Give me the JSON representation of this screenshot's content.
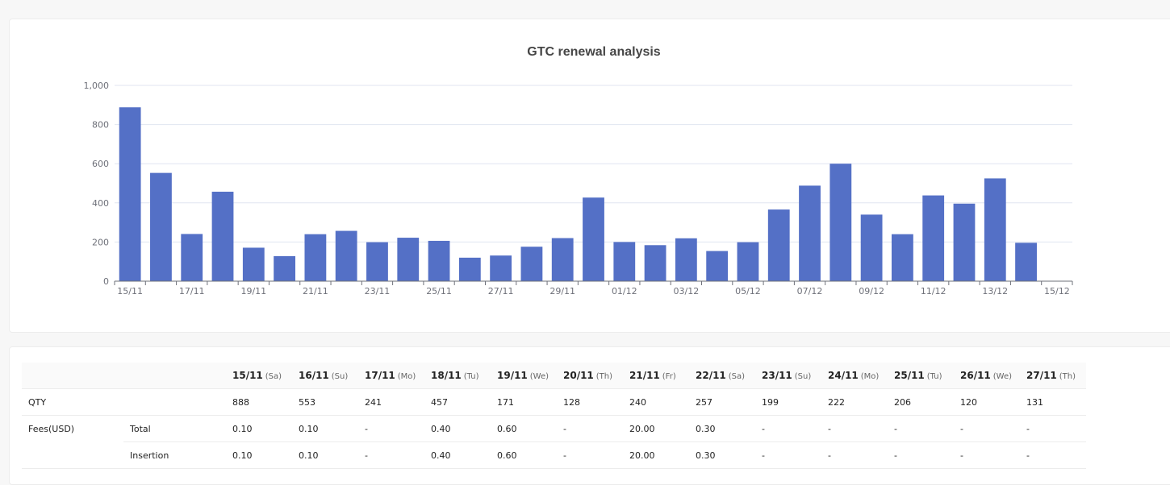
{
  "chart_data": {
    "type": "bar",
    "title": "GTC renewal analysis",
    "categories": [
      "15/11",
      "16/11",
      "17/11",
      "18/11",
      "19/11",
      "20/11",
      "21/11",
      "22/11",
      "23/11",
      "24/11",
      "25/11",
      "26/11",
      "27/11",
      "28/11",
      "29/11",
      "30/11",
      "01/12",
      "02/12",
      "03/12",
      "04/12",
      "05/12",
      "06/12",
      "07/12",
      "08/12",
      "09/12",
      "10/12",
      "11/12",
      "12/12",
      "13/12",
      "14/12",
      "15/12"
    ],
    "tick_labels": [
      "15/11",
      "17/11",
      "19/11",
      "21/11",
      "23/11",
      "25/11",
      "27/11",
      "29/11",
      "01/12",
      "03/12",
      "05/12",
      "07/12",
      "09/12",
      "11/12",
      "13/12",
      "15/12"
    ],
    "values": [
      888,
      553,
      241,
      457,
      171,
      128,
      240,
      257,
      199,
      222,
      206,
      120,
      131,
      176,
      220,
      427,
      200,
      184,
      219,
      154,
      199,
      366,
      488,
      600,
      340,
      240,
      438,
      396,
      525,
      196,
      0
    ],
    "ylim": [
      0,
      1000
    ],
    "yticks": [
      0,
      200,
      400,
      600,
      800,
      1000
    ],
    "ytick_labels": [
      "0",
      "200",
      "400",
      "600",
      "800",
      "1,000"
    ],
    "grid": true,
    "bar_color": "#5470c6"
  },
  "table": {
    "header_blank": [
      "",
      ""
    ],
    "columns": [
      {
        "date": "15/11",
        "day": "(Sa)"
      },
      {
        "date": "16/11",
        "day": "(Su)"
      },
      {
        "date": "17/11",
        "day": "(Mo)"
      },
      {
        "date": "18/11",
        "day": "(Tu)"
      },
      {
        "date": "19/11",
        "day": "(We)"
      },
      {
        "date": "20/11",
        "day": "(Th)"
      },
      {
        "date": "21/11",
        "day": "(Fr)"
      },
      {
        "date": "22/11",
        "day": "(Sa)"
      },
      {
        "date": "23/11",
        "day": "(Su)"
      },
      {
        "date": "24/11",
        "day": "(Mo)"
      },
      {
        "date": "25/11",
        "day": "(Tu)"
      },
      {
        "date": "26/11",
        "day": "(We)"
      },
      {
        "date": "27/11",
        "day": "(Th)"
      }
    ],
    "rows": [
      {
        "label": "QTY",
        "sublabel": "",
        "values": [
          "888",
          "553",
          "241",
          "457",
          "171",
          "128",
          "240",
          "257",
          "199",
          "222",
          "206",
          "120",
          "131"
        ]
      },
      {
        "label": "Fees(USD)",
        "sublabel": "Total",
        "values": [
          "0.10",
          "0.10",
          "-",
          "0.40",
          "0.60",
          "-",
          "20.00",
          "0.30",
          "-",
          "-",
          "-",
          "-",
          "-"
        ]
      },
      {
        "label": "",
        "sublabel": "Insertion",
        "values": [
          "0.10",
          "0.10",
          "-",
          "0.40",
          "0.60",
          "-",
          "20.00",
          "0.30",
          "-",
          "-",
          "-",
          "-",
          "-"
        ]
      }
    ]
  }
}
